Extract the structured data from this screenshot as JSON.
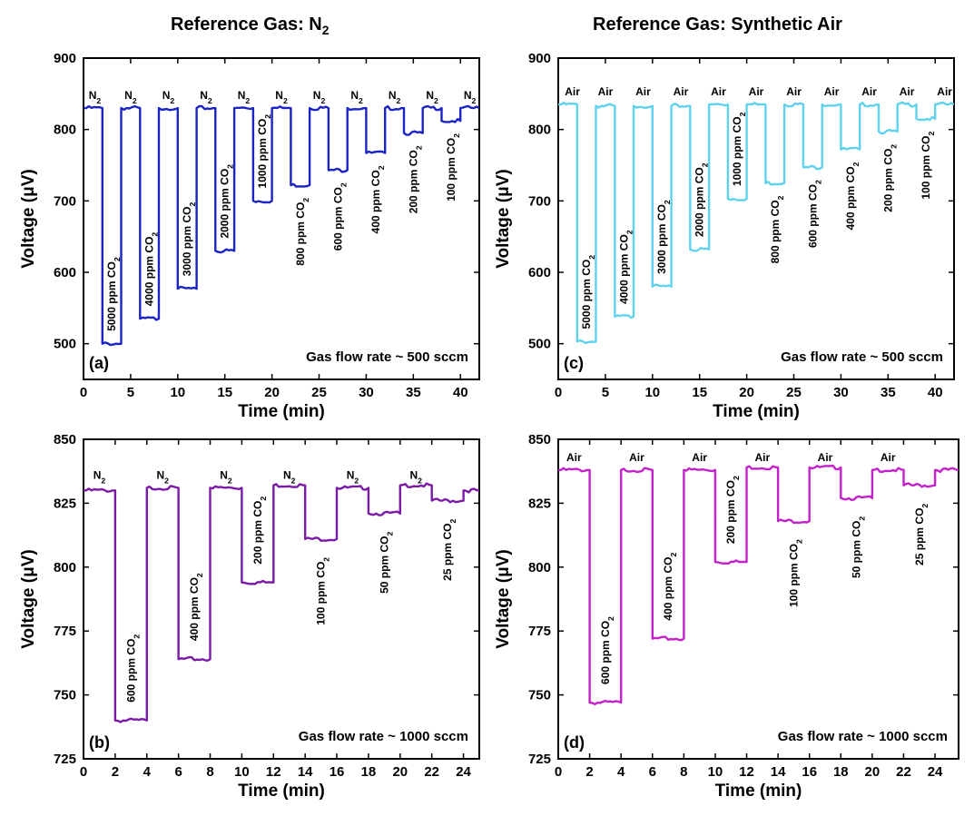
{
  "titles": {
    "left_prefix": "Reference Gas: N",
    "left_sub": "2",
    "right": "Reference Gas: Synthetic Air"
  },
  "colors": {
    "a": "#1a23c4",
    "b": "#7a1aa6",
    "c": "#5fd2ee",
    "d": "#c321c9"
  },
  "chart_data": [
    {
      "id": "a",
      "type": "line",
      "panel_label": "(a)",
      "xlabel": "Time (min)",
      "ylabel": "Voltage (μV)",
      "xlim": [
        0,
        42
      ],
      "ylim": [
        450,
        900
      ],
      "xticks": [
        0,
        5,
        10,
        15,
        20,
        25,
        30,
        35,
        40
      ],
      "yticks": [
        500,
        600,
        700,
        800,
        900
      ],
      "note": "Gas flow rate ~ 500 sccm",
      "baseline": 830,
      "series": [
        {
          "x": [
            0,
            2,
            2,
            4,
            4,
            6,
            6,
            8,
            8,
            10,
            10,
            12,
            12,
            14,
            14,
            16,
            16,
            18,
            18,
            20,
            20,
            22,
            22,
            24,
            24,
            26,
            26,
            28,
            28,
            30,
            30,
            32,
            32,
            34,
            34,
            36,
            36,
            38,
            38,
            40,
            40,
            42
          ],
          "y": [
            830,
            830,
            500,
            500,
            830,
            830,
            535,
            535,
            830,
            830,
            577,
            577,
            830,
            830,
            630,
            630,
            830,
            830,
            700,
            700,
            830,
            830,
            722,
            722,
            830,
            830,
            743,
            743,
            830,
            830,
            767,
            767,
            830,
            830,
            795,
            795,
            830,
            830,
            812,
            812,
            830,
            830
          ]
        }
      ],
      "ref_labels": [
        {
          "t": 1.2,
          "text": "N",
          "sub": "2"
        },
        {
          "t": 5.0,
          "text": "N",
          "sub": "2"
        },
        {
          "t": 9.0,
          "text": "N",
          "sub": "2"
        },
        {
          "t": 13.0,
          "text": "N",
          "sub": "2"
        },
        {
          "t": 17.0,
          "text": "N",
          "sub": "2"
        },
        {
          "t": 21.0,
          "text": "N",
          "sub": "2"
        },
        {
          "t": 25.0,
          "text": "N",
          "sub": "2"
        },
        {
          "t": 29.0,
          "text": "N",
          "sub": "2"
        },
        {
          "t": 33.0,
          "text": "N",
          "sub": "2"
        },
        {
          "t": 37.0,
          "text": "N",
          "sub": "2"
        },
        {
          "t": 41.0,
          "text": "N",
          "sub": "2"
        }
      ],
      "annotations": [
        {
          "t": 3.0,
          "v": 510,
          "text": "5000 ppm CO",
          "sub": "2",
          "pos": "above"
        },
        {
          "t": 7.0,
          "v": 545,
          "text": "4000 ppm CO",
          "sub": "2",
          "pos": "above"
        },
        {
          "t": 11.0,
          "v": 587,
          "text": "3000 ppm CO",
          "sub": "2",
          "pos": "above"
        },
        {
          "t": 15.0,
          "v": 640,
          "text": "2000 ppm CO",
          "sub": "2",
          "pos": "above"
        },
        {
          "t": 19.0,
          "v": 710,
          "text": "1000 ppm CO",
          "sub": "2",
          "pos": "above"
        },
        {
          "t": 23.0,
          "v": 712,
          "text": "800 ppm CO",
          "sub": "2",
          "pos": "below"
        },
        {
          "t": 27.0,
          "v": 733,
          "text": "600 ppm CO",
          "sub": "2",
          "pos": "below"
        },
        {
          "t": 31.0,
          "v": 757,
          "text": "400 ppm CO",
          "sub": "2",
          "pos": "below"
        },
        {
          "t": 35.0,
          "v": 785,
          "text": "200 ppm CO",
          "sub": "2",
          "pos": "below"
        },
        {
          "t": 39.0,
          "v": 802,
          "text": "100 ppm CO",
          "sub": "2",
          "pos": "below"
        }
      ]
    },
    {
      "id": "b",
      "type": "line",
      "panel_label": "(b)",
      "xlabel": "Time (min)",
      "ylabel": "Voltage (μV)",
      "xlim": [
        0,
        25
      ],
      "ylim": [
        725,
        850
      ],
      "xticks": [
        0,
        2,
        4,
        6,
        8,
        10,
        12,
        14,
        16,
        18,
        20,
        22,
        24
      ],
      "yticks": [
        725,
        750,
        775,
        800,
        825,
        850
      ],
      "note": "Gas flow rate ~ 1000 sccm",
      "baseline": 831,
      "series": [
        {
          "x": [
            0,
            2,
            2,
            4,
            4,
            6,
            6,
            8,
            8,
            10,
            10,
            12,
            12,
            14,
            14,
            16,
            16,
            18,
            18,
            20,
            20,
            22,
            22,
            24,
            24,
            25
          ],
          "y": [
            830,
            830,
            740,
            740,
            831,
            831,
            764,
            764,
            831,
            831,
            794,
            794,
            832,
            832,
            811,
            811,
            831,
            831,
            821,
            821,
            832,
            832,
            826,
            826,
            830,
            830
          ]
        }
      ],
      "ref_labels": [
        {
          "t": 1.0,
          "text": "N",
          "sub": "2"
        },
        {
          "t": 5.0,
          "text": "N",
          "sub": "2"
        },
        {
          "t": 9.0,
          "text": "N",
          "sub": "2"
        },
        {
          "t": 13.0,
          "text": "N",
          "sub": "2"
        },
        {
          "t": 17.0,
          "text": "N",
          "sub": "2"
        },
        {
          "t": 21.0,
          "text": "N",
          "sub": "2"
        }
      ],
      "annotations": [
        {
          "t": 3.0,
          "v": 745,
          "text": "600 ppm CO",
          "sub": "2",
          "pos": "above"
        },
        {
          "t": 7.0,
          "v": 769,
          "text": "400 ppm CO",
          "sub": "2",
          "pos": "above"
        },
        {
          "t": 11.0,
          "v": 799,
          "text": "200 ppm CO",
          "sub": "2",
          "pos": "above"
        },
        {
          "t": 15.0,
          "v": 806,
          "text": "100 ppm CO",
          "sub": "2",
          "pos": "below"
        },
        {
          "t": 19.0,
          "v": 816,
          "text": "50 ppm CO",
          "sub": "2",
          "pos": "below"
        },
        {
          "t": 23.0,
          "v": 821,
          "text": "25 ppm CO",
          "sub": "2",
          "pos": "below"
        }
      ]
    },
    {
      "id": "c",
      "type": "line",
      "panel_label": "(c)",
      "xlabel": "Time (min)",
      "ylabel": "Voltage (μV)",
      "xlim": [
        0,
        42
      ],
      "ylim": [
        450,
        900
      ],
      "xticks": [
        0,
        5,
        10,
        15,
        20,
        25,
        30,
        35,
        40
      ],
      "yticks": [
        500,
        600,
        700,
        800,
        900
      ],
      "note": "Gas flow rate ~ 500 sccm",
      "baseline": 835,
      "series": [
        {
          "x": [
            0,
            2,
            2,
            4,
            4,
            6,
            6,
            8,
            8,
            10,
            10,
            12,
            12,
            14,
            14,
            16,
            16,
            18,
            18,
            20,
            20,
            22,
            22,
            24,
            24,
            26,
            26,
            28,
            28,
            30,
            30,
            32,
            32,
            34,
            34,
            36,
            36,
            38,
            38,
            40,
            40,
            42
          ],
          "y": [
            835,
            835,
            503,
            503,
            833,
            833,
            538,
            538,
            833,
            833,
            580,
            580,
            833,
            833,
            632,
            632,
            835,
            835,
            703,
            703,
            835,
            835,
            725,
            725,
            835,
            835,
            747,
            747,
            835,
            835,
            772,
            772,
            835,
            835,
            797,
            797,
            835,
            835,
            815,
            815,
            835,
            835
          ]
        }
      ],
      "ref_labels": [
        {
          "t": 1.5,
          "text": "Air",
          "sub": ""
        },
        {
          "t": 5.0,
          "text": "Air",
          "sub": ""
        },
        {
          "t": 9.0,
          "text": "Air",
          "sub": ""
        },
        {
          "t": 13.0,
          "text": "Air",
          "sub": ""
        },
        {
          "t": 17.0,
          "text": "Air",
          "sub": ""
        },
        {
          "t": 21.0,
          "text": "Air",
          "sub": ""
        },
        {
          "t": 25.0,
          "text": "Air",
          "sub": ""
        },
        {
          "t": 29.0,
          "text": "Air",
          "sub": ""
        },
        {
          "t": 33.0,
          "text": "Air",
          "sub": ""
        },
        {
          "t": 37.0,
          "text": "Air",
          "sub": ""
        },
        {
          "t": 41.0,
          "text": "Air",
          "sub": ""
        }
      ],
      "annotations": [
        {
          "t": 3.0,
          "v": 513,
          "text": "5000 ppm CO",
          "sub": "2",
          "pos": "above"
        },
        {
          "t": 7.0,
          "v": 548,
          "text": "4000 ppm CO",
          "sub": "2",
          "pos": "above"
        },
        {
          "t": 11.0,
          "v": 590,
          "text": "3000 ppm CO",
          "sub": "2",
          "pos": "above"
        },
        {
          "t": 15.0,
          "v": 642,
          "text": "2000 ppm CO",
          "sub": "2",
          "pos": "above"
        },
        {
          "t": 19.0,
          "v": 713,
          "text": "1000 ppm CO",
          "sub": "2",
          "pos": "above"
        },
        {
          "t": 23.0,
          "v": 715,
          "text": "800 ppm CO",
          "sub": "2",
          "pos": "below"
        },
        {
          "t": 27.0,
          "v": 737,
          "text": "600 ppm CO",
          "sub": "2",
          "pos": "below"
        },
        {
          "t": 31.0,
          "v": 762,
          "text": "400 ppm CO",
          "sub": "2",
          "pos": "below"
        },
        {
          "t": 35.0,
          "v": 787,
          "text": "200 ppm CO",
          "sub": "2",
          "pos": "below"
        },
        {
          "t": 39.0,
          "v": 805,
          "text": "100 ppm CO",
          "sub": "2",
          "pos": "below"
        }
      ]
    },
    {
      "id": "d",
      "type": "line",
      "panel_label": "(d)",
      "xlabel": "Time (min)",
      "ylabel": "Voltage (μV)",
      "xlim": [
        0,
        25.5
      ],
      "ylim": [
        725,
        850
      ],
      "xticks": [
        0,
        2,
        4,
        6,
        8,
        10,
        12,
        14,
        16,
        18,
        20,
        22,
        24
      ],
      "yticks": [
        725,
        750,
        775,
        800,
        825,
        850
      ],
      "note": "Gas flow rate ~ 1000 sccm",
      "baseline": 838,
      "series": [
        {
          "x": [
            0,
            2,
            2,
            4,
            4,
            6,
            6,
            8,
            8,
            10,
            10,
            12,
            12,
            14,
            14,
            16,
            16,
            18,
            18,
            20,
            20,
            22,
            22,
            24,
            24,
            25.5
          ],
          "y": [
            838,
            838,
            747,
            747,
            838,
            838,
            772,
            772,
            838,
            838,
            802,
            802,
            839,
            839,
            818,
            818,
            839,
            839,
            827,
            827,
            838,
            838,
            832,
            832,
            838,
            838
          ]
        }
      ],
      "ref_labels": [
        {
          "t": 1.0,
          "text": "Air",
          "sub": ""
        },
        {
          "t": 5.0,
          "text": "Air",
          "sub": ""
        },
        {
          "t": 9.0,
          "text": "Air",
          "sub": ""
        },
        {
          "t": 13.0,
          "text": "Air",
          "sub": ""
        },
        {
          "t": 17.0,
          "text": "Air",
          "sub": ""
        },
        {
          "t": 21.0,
          "text": "Air",
          "sub": ""
        }
      ],
      "annotations": [
        {
          "t": 3.0,
          "v": 752,
          "text": "600 ppm CO",
          "sub": "2",
          "pos": "above"
        },
        {
          "t": 7.0,
          "v": 777,
          "text": "400 ppm CO",
          "sub": "2",
          "pos": "above"
        },
        {
          "t": 11.0,
          "v": 807,
          "text": "200 ppm CO",
          "sub": "2",
          "pos": "above"
        },
        {
          "t": 15.0,
          "v": 813,
          "text": "100 ppm CO",
          "sub": "2",
          "pos": "below"
        },
        {
          "t": 19.0,
          "v": 822,
          "text": "50 ppm CO",
          "sub": "2",
          "pos": "below"
        },
        {
          "t": 23.0,
          "v": 827,
          "text": "25 ppm CO",
          "sub": "2",
          "pos": "below"
        }
      ]
    }
  ]
}
